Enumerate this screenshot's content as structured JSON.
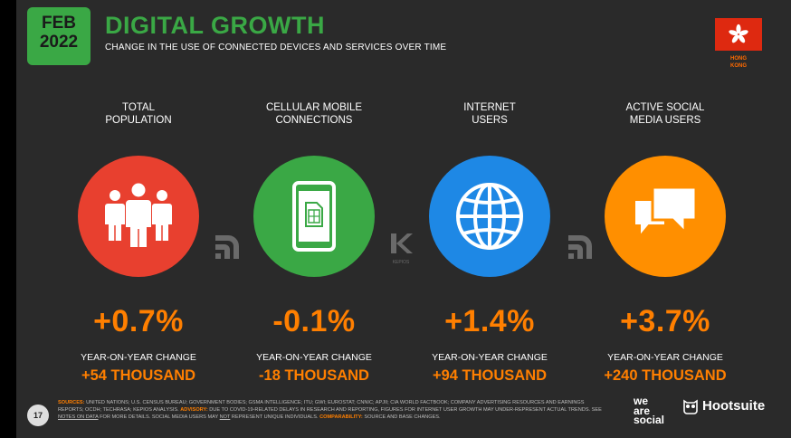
{
  "header": {
    "month": "FEB",
    "year": "2022",
    "title": "DIGITAL GROWTH",
    "subtitle": "CHANGE IN THE USE OF CONNECTED DEVICES AND SERVICES OVER TIME"
  },
  "region": {
    "line1": "HONG",
    "line2": "KONG",
    "flag_color": "#de2910"
  },
  "colors": {
    "accent_green": "#3aa845",
    "accent_orange": "#ff7f00",
    "background": "#2a2a2a"
  },
  "stats": [
    {
      "head1": "TOTAL",
      "head2": "POPULATION",
      "icon": "people-icon",
      "color": "#e8402f",
      "pct": "+0.7%",
      "yoy_label": "YEAR-ON-YEAR CHANGE",
      "abs": "+54 THOUSAND"
    },
    {
      "head1": "CELLULAR MOBILE",
      "head2": "CONNECTIONS",
      "icon": "mobile-sim-icon",
      "color": "#3aa845",
      "pct": "-0.1%",
      "yoy_label": "YEAR-ON-YEAR CHANGE",
      "abs": "-18 THOUSAND"
    },
    {
      "head1": "INTERNET",
      "head2": "USERS",
      "icon": "globe-icon",
      "color": "#1e88e5",
      "pct": "+1.4%",
      "yoy_label": "YEAR-ON-YEAR CHANGE",
      "abs": "+94 THOUSAND"
    },
    {
      "head1": "ACTIVE SOCIAL",
      "head2": "MEDIA USERS",
      "icon": "chat-bubbles-icon",
      "color": "#ff8f00",
      "pct": "+3.7%",
      "yoy_label": "YEAR-ON-YEAR CHANGE",
      "abs": "+240 THOUSAND"
    }
  ],
  "separators": {
    "kepios_label": "KEPIOS"
  },
  "footer": {
    "page_number": "17",
    "sources_label": "SOURCES:",
    "sources_text": "UNITED NATIONS; U.S. CENSUS BUREAU; GOVERNMENT BODIES; GSMA INTELLIGENCE; ITU; GWI; EUROSTAT; CNNIC; APJII; CIA WORLD FACTBOOK; COMPANY ADVERTISING RESOURCES AND EARNINGS REPORTS; OCDH; TECHRASA; KEPIOS ANALYSIS.",
    "advisory_label": "ADVISORY:",
    "advisory_text": "DUE TO COVID-19-RELATED DELAYS IN RESEARCH AND REPORTING, FIGURES FOR INTERNET USER GROWTH MAY UNDER-REPRESENT ACTUAL TRENDS. SEE",
    "notes_link": "NOTES ON DATA",
    "advisory_text2": "FOR MORE DETAILS. SOCIAL MEDIA USERS MAY",
    "not_word": "NOT",
    "advisory_text3": "REPRESENT UNIQUE INDIVIDUALS.",
    "comparability_label": "COMPARABILITY:",
    "comparability_text": "SOURCE AND BASE CHANGES.",
    "brand1_l1": "we",
    "brand1_l2": "are",
    "brand1_l3": "social",
    "brand2": "Hootsuite"
  }
}
